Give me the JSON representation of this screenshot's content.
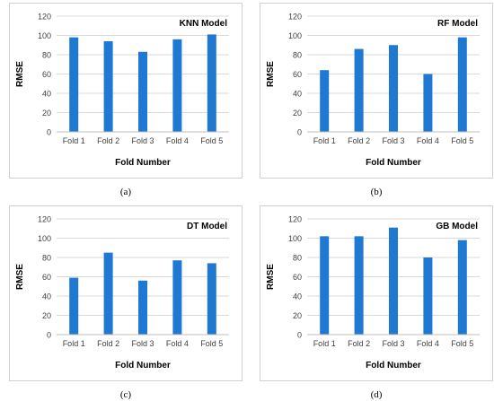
{
  "chart_data": [
    {
      "type": "bar",
      "title": "KNN Model",
      "caption": "(a)",
      "xlabel": "Fold Number",
      "ylabel": "RMSE",
      "categories": [
        "Fold 1",
        "Fold 2",
        "Fold 3",
        "Fold 4",
        "Fold 5"
      ],
      "values": [
        98,
        94,
        83,
        96,
        101
      ],
      "ylim": [
        0,
        120
      ],
      "yticks": [
        "0",
        "20",
        "40",
        "60",
        "80",
        "100",
        "120"
      ],
      "grid": true,
      "color": "#1f78d1"
    },
    {
      "type": "bar",
      "title": "RF Model",
      "caption": "(b)",
      "xlabel": "Fold Number",
      "ylabel": "RMSE",
      "categories": [
        "Fold 1",
        "Fold 2",
        "Fold 3",
        "Fold 4",
        "Fold 5"
      ],
      "values": [
        64,
        86,
        90,
        60,
        98
      ],
      "ylim": [
        0,
        120
      ],
      "yticks": [
        "0",
        "20",
        "40",
        "60",
        "80",
        "100",
        "120"
      ],
      "grid": true,
      "color": "#1f78d1"
    },
    {
      "type": "bar",
      "title": "DT Model",
      "caption": "(c)",
      "xlabel": "Fold Number",
      "ylabel": "RMSE",
      "categories": [
        "Fold 1",
        "Fold 2",
        "Fold 3",
        "Fold 4",
        "Fold 5"
      ],
      "values": [
        59,
        85,
        56,
        77,
        74
      ],
      "ylim": [
        0,
        120
      ],
      "yticks": [
        "0",
        "20",
        "40",
        "60",
        "80",
        "100",
        "120"
      ],
      "grid": true,
      "color": "#1f78d1"
    },
    {
      "type": "bar",
      "title": "GB Model",
      "caption": "(d)",
      "xlabel": "Fold Number",
      "ylabel": "RMSE",
      "categories": [
        "Fold 1",
        "Fold 2",
        "Fold 3",
        "Fold 4",
        "Fold 5"
      ],
      "values": [
        102,
        102,
        111,
        80,
        98
      ],
      "ylim": [
        0,
        120
      ],
      "yticks": [
        "0",
        "20",
        "40",
        "60",
        "80",
        "100",
        "120"
      ],
      "grid": true,
      "color": "#1f78d1"
    }
  ]
}
